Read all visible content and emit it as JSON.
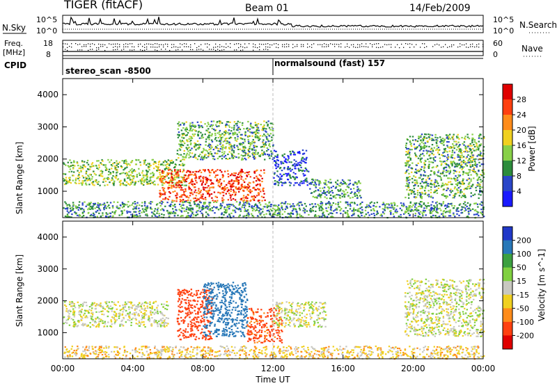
{
  "header": {
    "radar": "TIGER (fitACF)",
    "beam": "Beam 01",
    "date": "14/Feb/2009"
  },
  "top_panels": {
    "nsky_label": "N.Sky",
    "nsky_ticks": [
      "10^5",
      "10^0"
    ],
    "nsearch_label": "N.Search",
    "nsearch_ticks": [
      "10^5",
      "10^0"
    ],
    "freq_label_line1": "Freq.",
    "freq_label_line2": "[MHz]",
    "freq_ticks": [
      "18",
      "8"
    ],
    "nave_label": "Nave",
    "nave_ticks": [
      "60",
      "0"
    ],
    "cpid_label": "CPID",
    "cpid_segments": [
      {
        "name": "stereo_scan -8500",
        "start_hour": 0,
        "end_hour": 12
      },
      {
        "name": "normalsound (fast) 157",
        "start_hour": 12,
        "end_hour": 24
      }
    ]
  },
  "chart_data": [
    {
      "type": "heatmap",
      "title": "Power",
      "xlabel": "Time UT",
      "ylabel": "Slant Range [km]",
      "colorbar_label": "Power [dB]",
      "xlim": [
        0,
        24
      ],
      "ylim": [
        180,
        4500
      ],
      "x_ticks": [
        "00:00",
        "04:00",
        "08:00",
        "12:00",
        "16:00",
        "20:00",
        "00:00"
      ],
      "y_ticks": [
        1000,
        2000,
        3000,
        4000
      ],
      "colorbar_ticks": [
        4,
        8,
        12,
        16,
        20,
        24,
        28
      ],
      "colorbar_colors": [
        "#1a1aff",
        "#2a46c8",
        "#2c8c3c",
        "#88d048",
        "#f0d020",
        "#ff8c1a",
        "#ff4010",
        "#e00000"
      ],
      "regions": [
        {
          "t0": 0.0,
          "t1": 7.0,
          "r0": 1200,
          "r1": 2000,
          "value": 14
        },
        {
          "t0": 5.5,
          "t1": 11.5,
          "r0": 700,
          "r1": 1700,
          "value": 26
        },
        {
          "t0": 6.5,
          "t1": 12.0,
          "r0": 2000,
          "r1": 3200,
          "value": 12
        },
        {
          "t0": 12.0,
          "t1": 14.0,
          "r0": 1200,
          "r1": 2300,
          "value": 6
        },
        {
          "t0": 14.0,
          "t1": 17.0,
          "r0": 800,
          "r1": 1400,
          "value": 10
        },
        {
          "t0": 19.5,
          "t1": 24.0,
          "r0": 800,
          "r1": 2800,
          "value": 12
        },
        {
          "t0": 0.0,
          "t1": 24.0,
          "r0": 200,
          "r1": 700,
          "value": 10
        }
      ]
    },
    {
      "type": "heatmap",
      "title": "Velocity",
      "xlabel": "Time UT",
      "ylabel": "Slant Range [km]",
      "colorbar_label": "Velocity [m s^-1]",
      "xlim": [
        0,
        24
      ],
      "ylim": [
        180,
        4500
      ],
      "x_ticks": [
        "00:00",
        "04:00",
        "08:00",
        "12:00",
        "16:00",
        "20:00",
        "00:00"
      ],
      "y_ticks": [
        1000,
        2000,
        3000,
        4000
      ],
      "colorbar_ticks": [
        200,
        100,
        50,
        15,
        -15,
        -50,
        -100,
        -200
      ],
      "colorbar_colors": [
        "#2038c8",
        "#2878b8",
        "#3ca040",
        "#80d040",
        "#c8c8c0",
        "#f0d020",
        "#ff8c1a",
        "#ff4010",
        "#e00000"
      ],
      "regions": [
        {
          "t0": 0.0,
          "t1": 6.0,
          "r0": 1200,
          "r1": 2000,
          "value": 0
        },
        {
          "t0": 6.5,
          "t1": 8.5,
          "r0": 800,
          "r1": 2400,
          "value": -150
        },
        {
          "t0": 8.0,
          "t1": 10.5,
          "r0": 900,
          "r1": 2600,
          "value": 150
        },
        {
          "t0": 10.5,
          "t1": 12.5,
          "r0": 700,
          "r1": 1800,
          "value": -120
        },
        {
          "t0": 12.0,
          "t1": 15.0,
          "r0": 1200,
          "r1": 2000,
          "value": 0
        },
        {
          "t0": 19.5,
          "t1": 24.0,
          "r0": 900,
          "r1": 2700,
          "value": 0
        },
        {
          "t0": 0.0,
          "t1": 24.0,
          "r0": 200,
          "r1": 600,
          "value": -30
        }
      ]
    }
  ]
}
